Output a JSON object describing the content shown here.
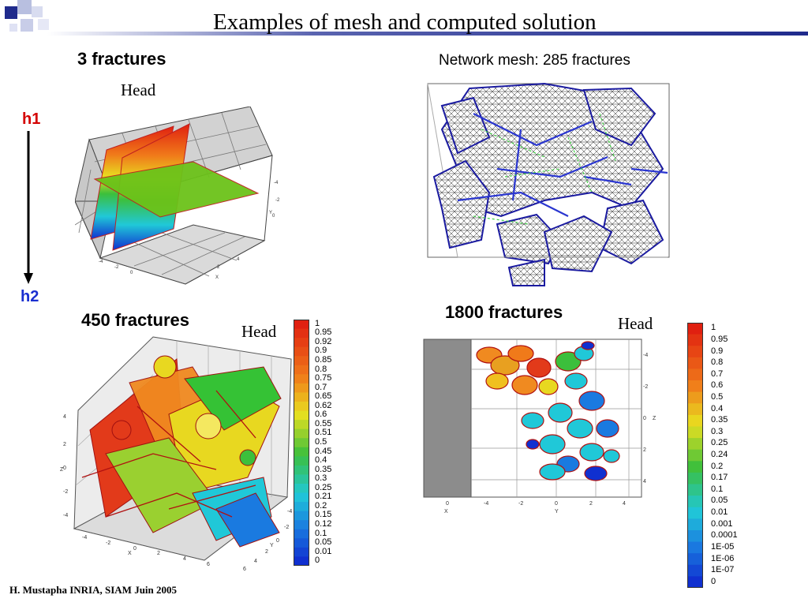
{
  "slide": {
    "title": "Examples of mesh and computed solution",
    "footer": "H. Mustapha INRIA, SIAM Juin 2005"
  },
  "panels": {
    "three": {
      "title": "3 fractures",
      "head_label": "Head"
    },
    "network": {
      "title": "Network mesh: 285 fractures"
    },
    "four_fifty": {
      "title": "450 fractures",
      "head_label": "Head"
    },
    "eighteen_hundred": {
      "title": "1800 fractures",
      "head_label": "Head"
    }
  },
  "arrow": {
    "top_label": "h1",
    "bottom_label": "h2",
    "top_color": "#d40000",
    "bottom_color": "#1a2fd0"
  },
  "colorbar_left": [
    "1",
    "0.95",
    "0.92",
    "0.9",
    "0.85",
    "0.8",
    "0.75",
    "0.7",
    "0.65",
    "0.62",
    "0.6",
    "0.55",
    "0.51",
    "0.5",
    "0.45",
    "0.4",
    "0.35",
    "0.3",
    "0.25",
    "0.21",
    "0.2",
    "0.15",
    "0.12",
    "0.1",
    "0.05",
    "0.01",
    "0"
  ],
  "colorbar_right": [
    "1",
    "0.95",
    "0.9",
    "0.8",
    "0.7",
    "0.6",
    "0.5",
    "0.4",
    "0.35",
    "0.3",
    "0.25",
    "0.24",
    "0.2",
    "0.17",
    "0.1",
    "0.05",
    "0.01",
    "0.001",
    "0.0001",
    "1E-05",
    "1E-06",
    "1E-07",
    "0"
  ],
  "axes": {
    "p3_ticks": [
      "-4",
      "-2",
      "0",
      "2",
      "4",
      "-2",
      "0",
      "2",
      "4"
    ],
    "p3_x": "X",
    "p3_y": "Y",
    "p450_z": [
      "4",
      "2",
      "0",
      "-2",
      "-4"
    ],
    "p450_zlabel": "Z",
    "p450_bottom": [
      "-4",
      "-2",
      "0",
      "2",
      "4",
      "6"
    ],
    "p450_x": "X",
    "p450_right": [
      "-4",
      "-2",
      "0",
      "2",
      "4",
      "6"
    ],
    "p450_y": "Y",
    "p1800_z": [
      "-4",
      "-2",
      "0",
      "2",
      "4"
    ],
    "p1800_zlabel": "Z",
    "p1800_x": [
      "0"
    ],
    "p1800_xlabel": "X",
    "p1800_y": [
      "-4",
      "-2",
      "0",
      "2",
      "4"
    ],
    "p1800_ylabel": "Y"
  },
  "colors": {
    "logo_blue": "#1f2a8c",
    "red": "#e02010",
    "orange": "#f07a1a",
    "yellow": "#e8e020",
    "green": "#3cbf3c",
    "cyan": "#20c8d8",
    "blue": "#1030d0"
  }
}
